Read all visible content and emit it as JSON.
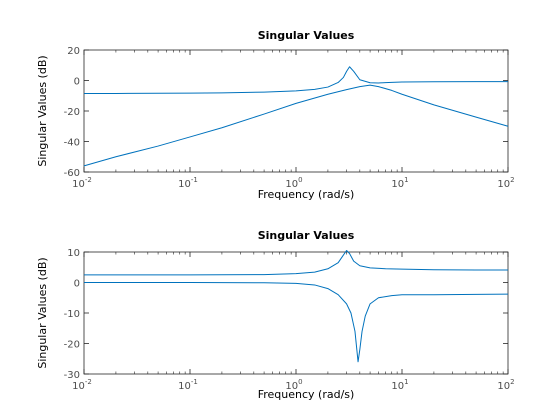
{
  "chart_data": [
    {
      "type": "line",
      "title": "Singular Values",
      "xlabel": "Frequency (rad/s)",
      "ylabel": "Singular Values (dB)",
      "xscale": "log",
      "xlim": [
        0.01,
        100
      ],
      "ylim": [
        -60,
        20
      ],
      "x_ticks": [
        0.01,
        0.1,
        1,
        10,
        100
      ],
      "x_tick_exponents": [
        "-2",
        "-1",
        "0",
        "1",
        "2"
      ],
      "y_ticks": [
        -60,
        -40,
        -20,
        0,
        20
      ],
      "grid": false,
      "line_color": "#0072bd",
      "series": [
        {
          "x": [
            0.01,
            0.02,
            0.05,
            0.1,
            0.2,
            0.5,
            1,
            1.5,
            2,
            2.5,
            2.8,
            3.0,
            3.2,
            3.5,
            4,
            5,
            6,
            7,
            8,
            10,
            20,
            50,
            100
          ],
          "values": [
            -8.5,
            -8.5,
            -8.4,
            -8.3,
            -8.1,
            -7.6,
            -6.8,
            -5.8,
            -4.3,
            -1.3,
            2.0,
            6.0,
            9.0,
            6.0,
            0.5,
            -1.5,
            -1.6,
            -1.4,
            -1.2,
            -1.0,
            -0.8,
            -0.7,
            -0.7
          ]
        },
        {
          "x": [
            0.01,
            0.02,
            0.05,
            0.1,
            0.2,
            0.5,
            1,
            2,
            3,
            4,
            5,
            6,
            8,
            10,
            20,
            50,
            100
          ],
          "values": [
            -56,
            -50,
            -43,
            -37,
            -31,
            -22,
            -15,
            -9,
            -6,
            -4,
            -3,
            -4,
            -6.5,
            -9,
            -16,
            -24,
            -30
          ]
        }
      ]
    },
    {
      "type": "line",
      "title": "Singular Values",
      "xlabel": "Frequency (rad/s)",
      "ylabel": "Singular Values (dB)",
      "xscale": "log",
      "xlim": [
        0.01,
        100
      ],
      "ylim": [
        -30,
        10
      ],
      "x_ticks": [
        0.01,
        0.1,
        1,
        10,
        100
      ],
      "x_tick_exponents": [
        "-2",
        "-1",
        "0",
        "1",
        "2"
      ],
      "y_ticks": [
        -30,
        -20,
        -10,
        0,
        10
      ],
      "grid": false,
      "line_color": "#0072bd",
      "series": [
        {
          "x": [
            0.01,
            0.1,
            0.5,
            1,
            1.5,
            2,
            2.5,
            2.8,
            3.0,
            3.2,
            3.5,
            4,
            5,
            7,
            10,
            20,
            50,
            100
          ],
          "values": [
            2.5,
            2.5,
            2.6,
            2.9,
            3.4,
            4.5,
            6.5,
            9.0,
            10.5,
            9.5,
            7.0,
            5.5,
            4.8,
            4.5,
            4.4,
            4.2,
            4.1,
            4.1
          ]
        },
        {
          "x": [
            0.01,
            0.1,
            0.5,
            1,
            1.5,
            2,
            2.5,
            3.0,
            3.3,
            3.6,
            3.85,
            4.0,
            4.2,
            4.5,
            5,
            6,
            8,
            10,
            20,
            50,
            100
          ],
          "values": [
            0,
            0,
            -0.1,
            -0.3,
            -0.8,
            -2,
            -4,
            -7,
            -10,
            -16,
            -26,
            -22,
            -16,
            -11,
            -7,
            -5,
            -4.3,
            -4,
            -4,
            -3.9,
            -3.8
          ]
        }
      ]
    }
  ]
}
